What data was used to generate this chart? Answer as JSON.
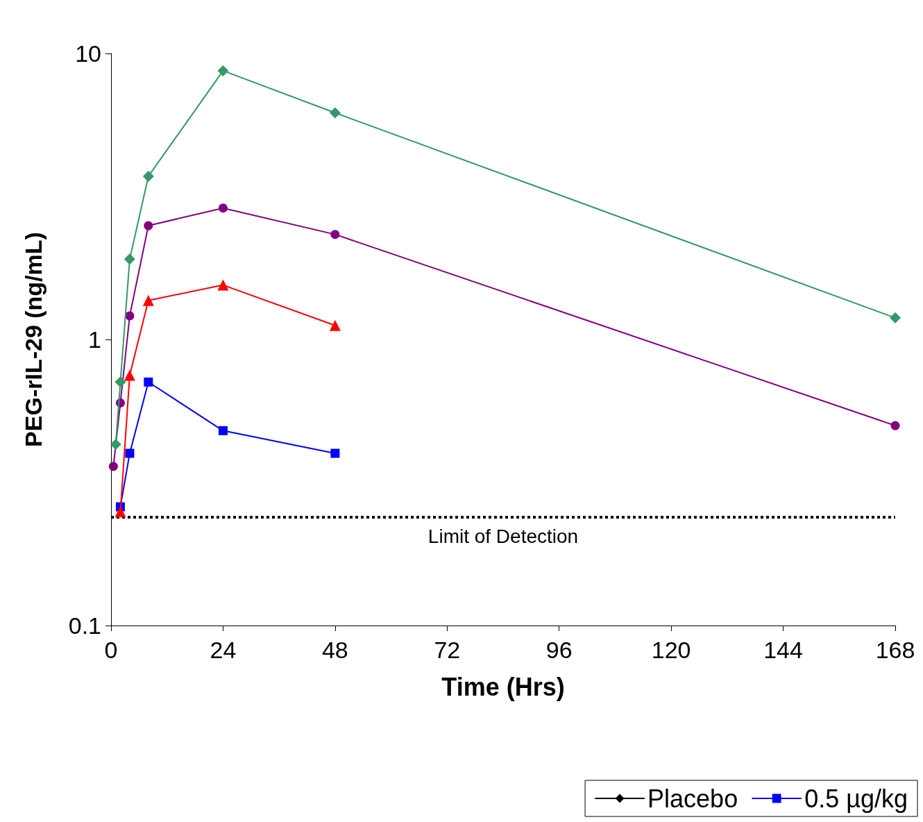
{
  "chart_data": {
    "type": "line",
    "xlabel": "Time (Hrs)",
    "ylabel": "PEG-rIL-29 (ng/mL)",
    "xlim": [
      0,
      168
    ],
    "xticks": [
      0,
      24,
      48,
      72,
      96,
      120,
      144,
      168
    ],
    "ylim": [
      0.1,
      10
    ],
    "yticks": [
      0.1,
      1,
      10
    ],
    "log": "y",
    "grid": false,
    "legend": "bottom right",
    "line_style": "solid",
    "series": [
      {
        "name": "Placebo",
        "color": "#000000",
        "marker": "diamond"
      },
      {
        "name": "0.5 µg/kg",
        "color": "#0000ff",
        "marker": "square",
        "x": [
          2,
          4,
          8,
          24,
          48
        ],
        "values": [
          0.26,
          0.4,
          0.71,
          0.48,
          0.4
        ]
      },
      {
        "color": "#ff0000",
        "marker": "triangle",
        "x": [
          2,
          4,
          8,
          24,
          48
        ],
        "values": [
          0.25,
          0.75,
          1.37,
          1.55,
          1.12
        ]
      },
      {
        "color": "#800080",
        "marker": "circle",
        "x": [
          0.5,
          2,
          4,
          8,
          24,
          48,
          168
        ],
        "values": [
          0.36,
          0.6,
          1.21,
          2.5,
          2.88,
          2.33,
          0.5
        ]
      },
      {
        "color": "#339966",
        "marker": "diamond",
        "x": [
          1,
          2,
          4,
          8,
          24,
          48,
          168
        ],
        "values": [
          0.43,
          0.71,
          1.91,
          3.72,
          8.7,
          6.2,
          1.19
        ]
      }
    ],
    "ref_lines": [
      {
        "axis": "y",
        "value": 0.24,
        "label": "Limit of Detection",
        "color": "#000000",
        "line_style": "dotted"
      }
    ]
  }
}
